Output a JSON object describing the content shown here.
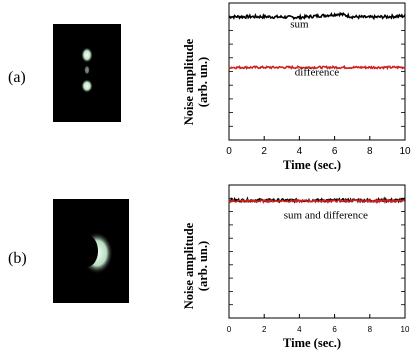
{
  "panels": [
    {
      "label": "(a)",
      "image_icon": "beam-spot-two-lobes-image",
      "ylabel_line1": "Noise amplitude",
      "ylabel_line2": "(arb. un.)",
      "xlabel": "Time (sec.)"
    },
    {
      "label": "(b)",
      "image_icon": "beam-spot-crescent-image",
      "ylabel_line1": "Noise amplitude",
      "ylabel_line2": "(arb. un.)",
      "xlabel": "Time (sec.)"
    }
  ],
  "chart_data": [
    {
      "type": "line",
      "xlabel": "Time (sec.)",
      "ylabel": "Noise amplitude (arb. un.)",
      "xlim": [
        0,
        10
      ],
      "xticks": [
        0,
        2,
        4,
        6,
        8,
        10
      ],
      "ylim": [
        0,
        10
      ],
      "ytick_labels": false,
      "grid": false,
      "series": [
        {
          "color": "#000000",
          "x": [
            0,
            2,
            4,
            5.5,
            6.3,
            7,
            8,
            10
          ],
          "values": [
            9.0,
            9.0,
            8.95,
            9.1,
            9.2,
            9.0,
            8.95,
            9.05
          ]
        },
        {
          "color": "#cc2222",
          "x": [
            0,
            2,
            4,
            6,
            8,
            10
          ],
          "values": [
            5.3,
            5.3,
            5.3,
            5.3,
            5.3,
            5.3
          ]
        }
      ],
      "annotations": [
        {
          "text": "sum",
          "x": 4.0,
          "y": 8.2
        },
        {
          "text": "difference",
          "x": 5.0,
          "y": 4.7
        }
      ]
    },
    {
      "type": "line",
      "xlabel": "Time (sec.)",
      "ylabel": "Noise amplitude (arb. un.)",
      "xlim": [
        0,
        10
      ],
      "xticks": [
        0,
        2,
        4,
        6,
        8,
        10
      ],
      "ylim": [
        0,
        10
      ],
      "ytick_labels": false,
      "grid": false,
      "series": [
        {
          "color": "#000000",
          "x": [
            0,
            2,
            4,
            6,
            8,
            10
          ],
          "values": [
            8.85,
            8.85,
            8.85,
            8.85,
            8.85,
            8.85
          ]
        },
        {
          "color": "#cc2222",
          "x": [
            0,
            2,
            4,
            6,
            8,
            10
          ],
          "values": [
            8.8,
            8.8,
            8.8,
            8.8,
            8.8,
            8.8
          ]
        }
      ],
      "annotations": [
        {
          "text": "sum and difference",
          "x": 5.5,
          "y": 7.5
        }
      ]
    }
  ]
}
